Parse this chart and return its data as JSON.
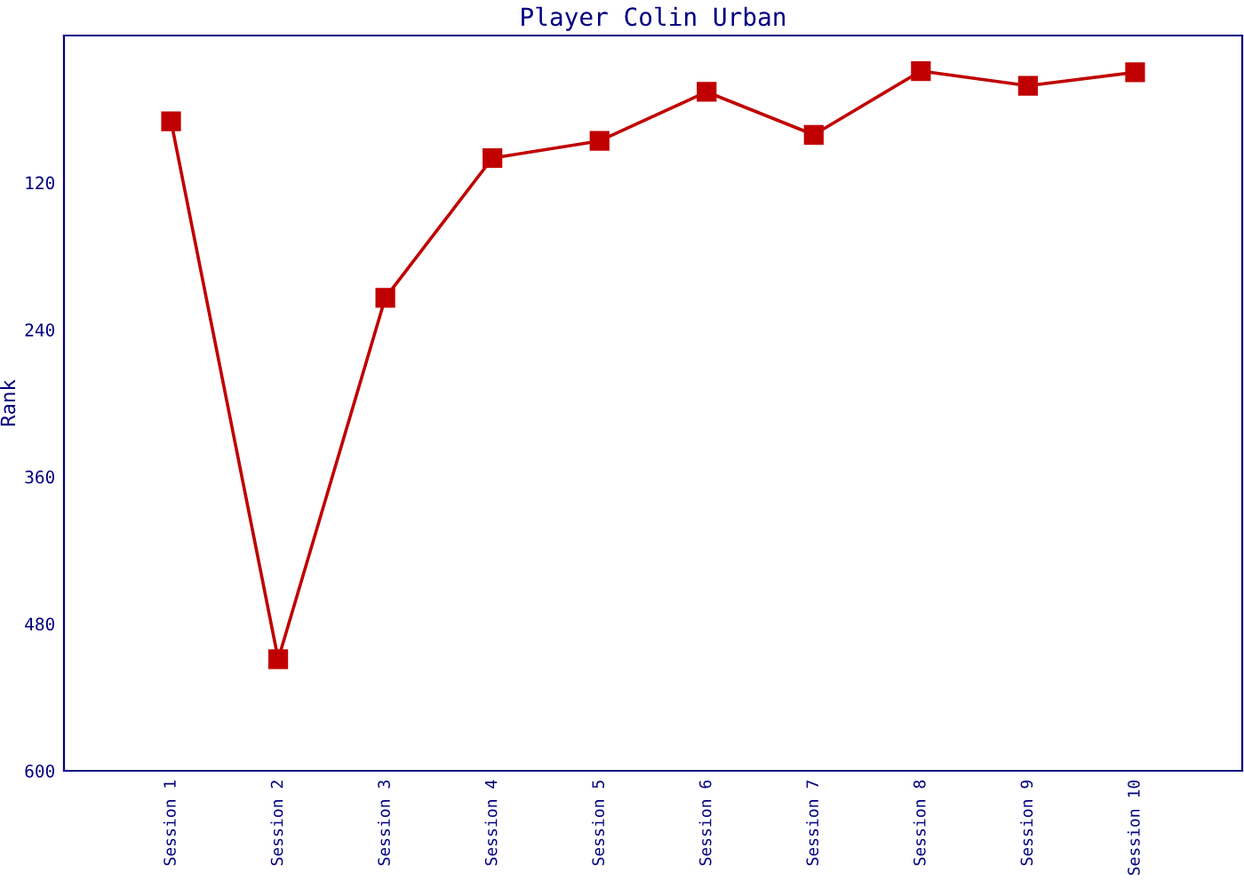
{
  "chart_data": {
    "type": "line",
    "title": "Player Colin Urban",
    "ylabel": "Rank",
    "categories": [
      "Session 1",
      "Session 2",
      "Session 3",
      "Session 4",
      "Session 5",
      "Session 6",
      "Session 7",
      "Session 8",
      "Session 9",
      "Session 10"
    ],
    "series": [
      {
        "color": "#c00000",
        "values": [
          70,
          509,
          214,
          100,
          86,
          46,
          81,
          29,
          41,
          30
        ]
      }
    ],
    "ylim": [
      600,
      0
    ],
    "yticks": [
      120,
      240,
      360,
      480,
      600
    ],
    "marker": "square",
    "line_style": "solid",
    "grid": false
  }
}
